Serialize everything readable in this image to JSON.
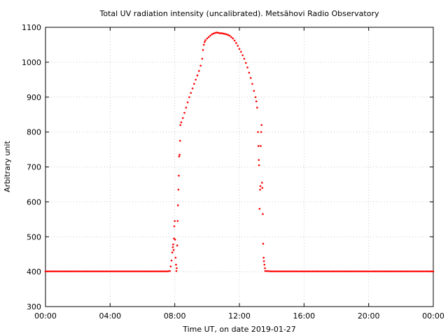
{
  "chart_data": {
    "type": "scatter",
    "title": "Total UV radiation intensity (uncalibrated). Metsähovi Radio Observatory",
    "xlabel": "Time UT, on date 2019-01-27",
    "ylabel": "Arbitrary unit",
    "xlim": [
      0,
      24
    ],
    "ylim": [
      300,
      1100
    ],
    "grid": true,
    "x_ticks": [
      {
        "value": 0,
        "label": "00:00"
      },
      {
        "value": 4,
        "label": "04:00"
      },
      {
        "value": 8,
        "label": "08:00"
      },
      {
        "value": 12,
        "label": "12:00"
      },
      {
        "value": 16,
        "label": "16:00"
      },
      {
        "value": 20,
        "label": "20:00"
      },
      {
        "value": 24,
        "label": "00:00"
      }
    ],
    "y_ticks": [
      {
        "value": 300,
        "label": "300"
      },
      {
        "value": 400,
        "label": "400"
      },
      {
        "value": 500,
        "label": "500"
      },
      {
        "value": 600,
        "label": "600"
      },
      {
        "value": 700,
        "label": "700"
      },
      {
        "value": 800,
        "label": "800"
      },
      {
        "value": 900,
        "label": "900"
      },
      {
        "value": 1000,
        "label": "1000"
      },
      {
        "value": 1100,
        "label": "1100"
      }
    ],
    "marker_color": "#ff0000",
    "series": [
      {
        "points": [
          [
            0.0,
            401
          ],
          [
            0.5,
            401
          ],
          [
            1.0,
            401
          ],
          [
            1.5,
            401
          ],
          [
            2.0,
            401
          ],
          [
            2.5,
            401
          ],
          [
            3.0,
            401
          ],
          [
            3.5,
            401
          ],
          [
            4.0,
            401
          ],
          [
            4.5,
            401
          ],
          [
            5.0,
            401
          ],
          [
            5.5,
            401
          ],
          [
            6.0,
            401
          ],
          [
            6.5,
            401
          ],
          [
            7.0,
            401
          ],
          [
            7.5,
            401
          ],
          [
            7.7,
            402
          ],
          [
            7.75,
            415
          ],
          [
            7.8,
            432
          ],
          [
            7.85,
            455
          ],
          [
            7.88,
            470
          ],
          [
            7.9,
            478
          ],
          [
            7.93,
            462
          ],
          [
            7.95,
            495
          ],
          [
            7.97,
            530
          ],
          [
            8.0,
            545
          ],
          [
            8.02,
            492
          ],
          [
            8.05,
            440
          ],
          [
            8.08,
            420
          ],
          [
            8.1,
            402
          ],
          [
            8.12,
            410
          ],
          [
            8.15,
            475
          ],
          [
            8.18,
            545
          ],
          [
            8.2,
            590
          ],
          [
            8.23,
            635
          ],
          [
            8.25,
            675
          ],
          [
            8.27,
            730
          ],
          [
            8.3,
            735
          ],
          [
            8.33,
            775
          ],
          [
            8.35,
            820
          ],
          [
            8.4,
            828
          ],
          [
            8.5,
            840
          ],
          [
            8.6,
            855
          ],
          [
            8.7,
            870
          ],
          [
            8.8,
            885
          ],
          [
            8.9,
            900
          ],
          [
            9.0,
            912
          ],
          [
            9.1,
            925
          ],
          [
            9.2,
            938
          ],
          [
            9.3,
            950
          ],
          [
            9.4,
            962
          ],
          [
            9.5,
            975
          ],
          [
            9.6,
            990
          ],
          [
            9.7,
            1010
          ],
          [
            9.75,
            1035
          ],
          [
            9.8,
            1050
          ],
          [
            9.85,
            1058
          ],
          [
            9.9,
            1063
          ],
          [
            10.0,
            1068
          ],
          [
            10.1,
            1072
          ],
          [
            10.2,
            1076
          ],
          [
            10.3,
            1080
          ],
          [
            10.4,
            1082
          ],
          [
            10.5,
            1084
          ],
          [
            10.6,
            1085
          ],
          [
            10.7,
            1084
          ],
          [
            10.8,
            1083
          ],
          [
            10.9,
            1083
          ],
          [
            11.0,
            1082
          ],
          [
            11.1,
            1081
          ],
          [
            11.2,
            1080
          ],
          [
            11.3,
            1078
          ],
          [
            11.4,
            1076
          ],
          [
            11.5,
            1072
          ],
          [
            11.6,
            1068
          ],
          [
            11.7,
            1062
          ],
          [
            11.8,
            1055
          ],
          [
            11.9,
            1047
          ],
          [
            12.0,
            1038
          ],
          [
            12.1,
            1030
          ],
          [
            12.2,
            1020
          ],
          [
            12.3,
            1010
          ],
          [
            12.4,
            998
          ],
          [
            12.5,
            985
          ],
          [
            12.6,
            970
          ],
          [
            12.7,
            955
          ],
          [
            12.8,
            938
          ],
          [
            12.9,
            918
          ],
          [
            13.0,
            900
          ],
          [
            13.05,
            888
          ],
          [
            13.1,
            870
          ],
          [
            13.15,
            800
          ],
          [
            13.18,
            760
          ],
          [
            13.2,
            720
          ],
          [
            13.22,
            705
          ],
          [
            13.25,
            580
          ],
          [
            13.28,
            635
          ],
          [
            13.3,
            645
          ],
          [
            13.32,
            760
          ],
          [
            13.35,
            800
          ],
          [
            13.37,
            820
          ],
          [
            13.4,
            655
          ],
          [
            13.42,
            640
          ],
          [
            13.45,
            565
          ],
          [
            13.47,
            480
          ],
          [
            13.5,
            440
          ],
          [
            13.52,
            430
          ],
          [
            13.55,
            420
          ],
          [
            13.58,
            410
          ],
          [
            13.6,
            402
          ],
          [
            14.0,
            401
          ],
          [
            14.5,
            401
          ],
          [
            15.0,
            401
          ],
          [
            15.5,
            401
          ],
          [
            16.0,
            401
          ],
          [
            16.5,
            401
          ],
          [
            17.0,
            401
          ],
          [
            17.5,
            401
          ],
          [
            18.0,
            401
          ],
          [
            18.5,
            401
          ],
          [
            19.0,
            401
          ],
          [
            19.5,
            401
          ],
          [
            20.0,
            401
          ],
          [
            20.5,
            401
          ],
          [
            21.0,
            401
          ],
          [
            21.5,
            401
          ],
          [
            22.0,
            401
          ],
          [
            22.5,
            401
          ],
          [
            23.0,
            401
          ],
          [
            23.5,
            401
          ],
          [
            24.0,
            401
          ]
        ]
      }
    ]
  }
}
